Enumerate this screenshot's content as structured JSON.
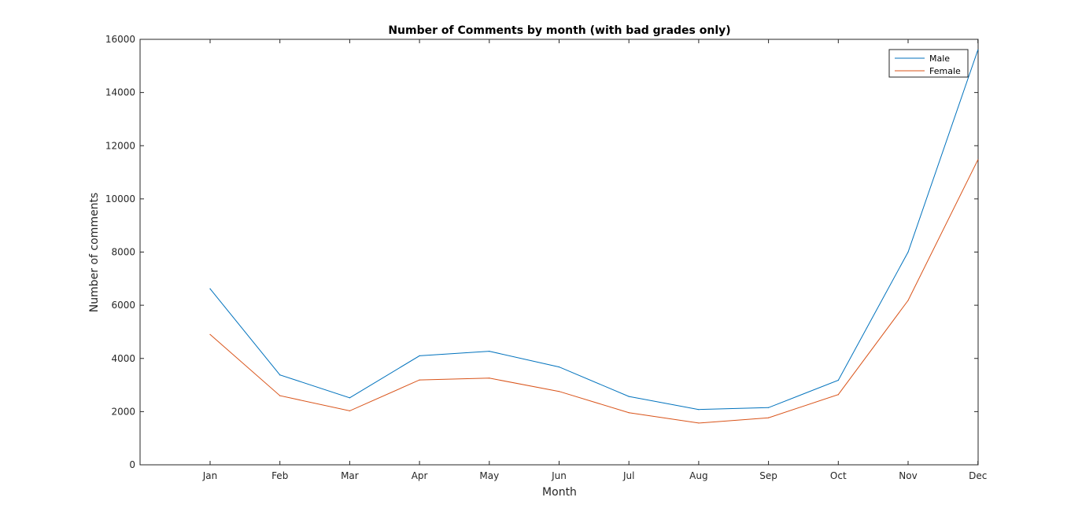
{
  "chart_data": {
    "type": "line",
    "title": "Number of Comments by month (with bad grades only)",
    "xlabel": "Month",
    "ylabel": "Number of comments",
    "categories": [
      "Jan",
      "Feb",
      "Mar",
      "Apr",
      "May",
      "Jun",
      "Jul",
      "Aug",
      "Sep",
      "Oct",
      "Nov",
      "Dec"
    ],
    "ylim": [
      0,
      16000
    ],
    "yticks": [
      0,
      2000,
      4000,
      6000,
      8000,
      10000,
      12000,
      14000,
      16000
    ],
    "grid": false,
    "legend_position": "top-right",
    "series": [
      {
        "name": "Male",
        "color": "#0072BD",
        "values": [
          6620,
          3380,
          2520,
          4100,
          4270,
          3680,
          2570,
          2080,
          2150,
          3180,
          8000,
          15600
        ]
      },
      {
        "name": "Female",
        "color": "#D95319",
        "values": [
          4900,
          2600,
          2030,
          3190,
          3260,
          2760,
          1960,
          1570,
          1770,
          2640,
          6180,
          11470
        ]
      }
    ]
  }
}
